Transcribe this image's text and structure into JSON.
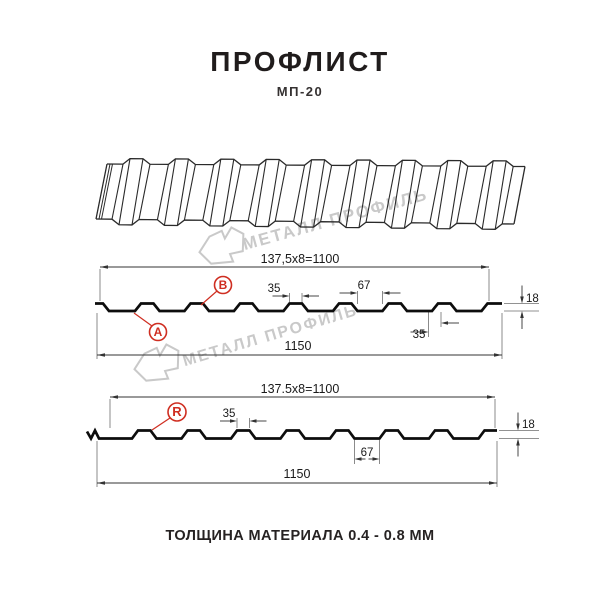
{
  "header": {
    "title": "ПРОФЛИСТ",
    "subtitle": "МП-20"
  },
  "watermark": {
    "brand_text": "МЕТАЛЛ ПРОФИЛЬ"
  },
  "profile_top": {
    "dim_width_formula": "137,5x8=1100",
    "dim_crest_width": "35",
    "dim_valley_width": "67",
    "dim_height": "18",
    "dim_total_width": "1150",
    "dim_bottom_crest": "35",
    "label_a": "А",
    "label_b": "В"
  },
  "profile_bottom": {
    "dim_width_formula": "137.5x8=1100",
    "dim_crest_width": "35",
    "dim_valley_width": "67",
    "dim_height": "18",
    "dim_total_width": "1150",
    "label_r": "R"
  },
  "footer": {
    "thickness_note": "ТОЛЩИНА МАТЕРИАЛА 0.4 - 0.8 ММ"
  },
  "colors": {
    "accent_red": "#cf2e21",
    "line_black": "#0d0d0d",
    "watermark_gray": "#c9c9c9"
  }
}
